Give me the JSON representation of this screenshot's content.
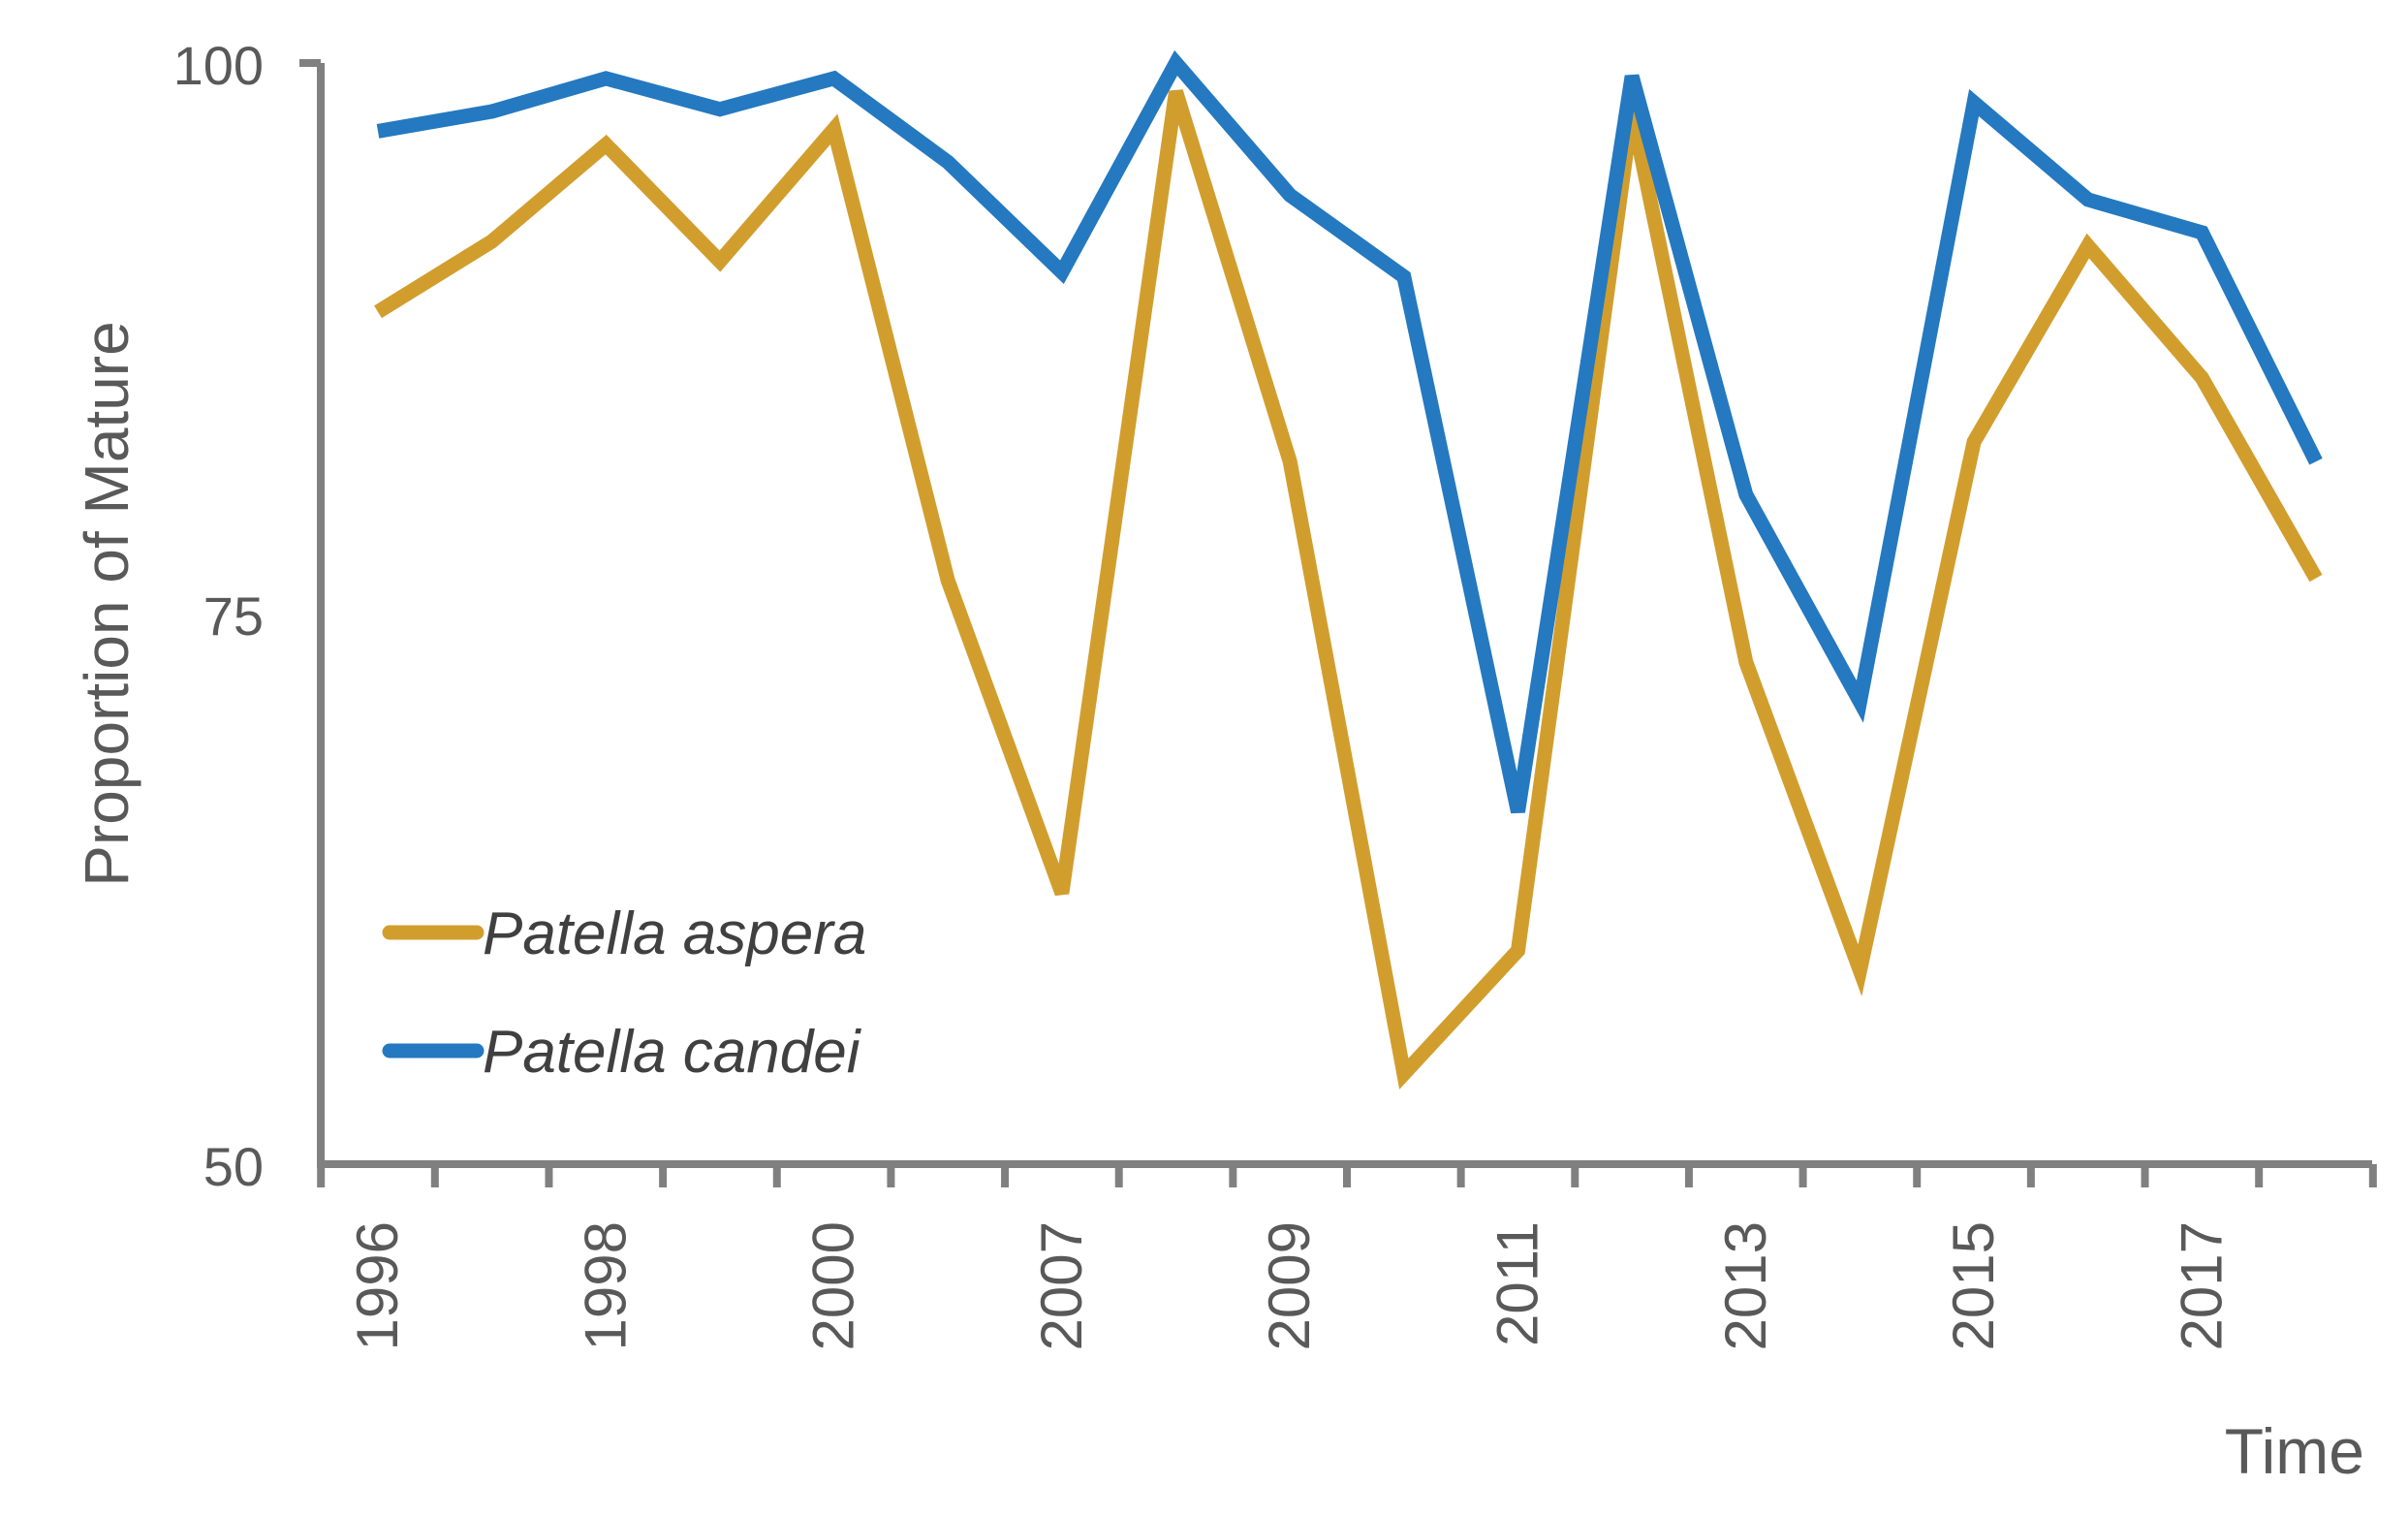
{
  "chart_data": {
    "type": "line",
    "title": "",
    "xlabel": "Time",
    "ylabel": "Proportion of Mature",
    "ylim": [
      50,
      100
    ],
    "yticks": [
      "50",
      "75",
      "100"
    ],
    "x": [
      "1996",
      "1997",
      "1998",
      "1999",
      "2000",
      "2006",
      "2007",
      "2008",
      "2009",
      "2010",
      "2011",
      "2012",
      "2013",
      "2014",
      "2015",
      "2016",
      "2017",
      "2018"
    ],
    "xtick_labels_shown": [
      "1996",
      "1998",
      "2000",
      "2007",
      "2009",
      "2011",
      "2013",
      "2015",
      "2017"
    ],
    "grid": false,
    "legend_position": "bottom-left",
    "series": [
      {
        "name": "Patella aspera",
        "color": "#D19E2E",
        "values": [
          88.7,
          91.9,
          96.3,
          91.0,
          97.0,
          76.5,
          62.3,
          98.7,
          81.9,
          54.1,
          59.7,
          97.8,
          72.8,
          58.8,
          82.8,
          91.7,
          85.7,
          76.6
        ]
      },
      {
        "name": "Patella candei",
        "color": "#2479C0",
        "values": [
          96.9,
          97.8,
          99.3,
          97.9,
          99.3,
          95.5,
          90.5,
          100.0,
          94.0,
          90.3,
          66.0,
          99.4,
          80.4,
          71.0,
          98.2,
          93.8,
          92.3,
          81.9
        ]
      }
    ]
  }
}
